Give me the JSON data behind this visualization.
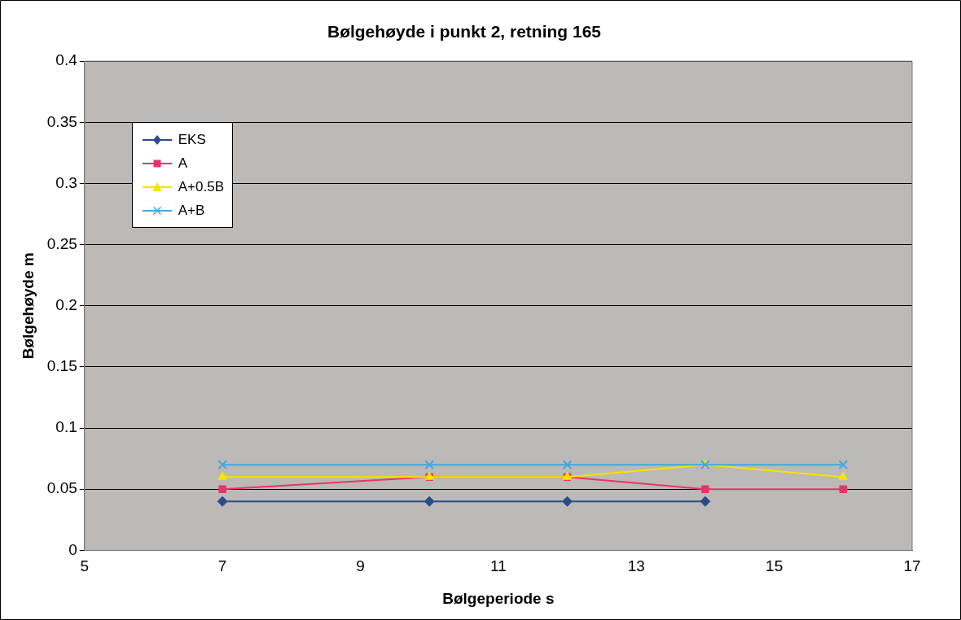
{
  "chart_data": {
    "type": "line",
    "title": "Bølgehøyde i punkt 2, retning 165",
    "xlabel": "Bølgeperiode s",
    "ylabel": "Bølgehøyde m",
    "xlim": [
      5,
      17
    ],
    "xticks": [
      5,
      7,
      9,
      11,
      13,
      15,
      17
    ],
    "ylim": [
      0,
      0.4
    ],
    "yticks": [
      0,
      0.05,
      0.1,
      0.15,
      0.2,
      0.25,
      0.3,
      0.35,
      0.4
    ],
    "grid": "y",
    "legend": "top left",
    "series": [
      {
        "name": "EKS",
        "color": "#2b4a8e",
        "marker": "diamond",
        "x": [
          7,
          10,
          12,
          14
        ],
        "values": [
          0.04,
          0.04,
          0.04,
          0.04
        ]
      },
      {
        "name": "A",
        "color": "#e8336b",
        "marker": "square",
        "x": [
          7,
          10,
          12,
          14,
          16
        ],
        "values": [
          0.05,
          0.06,
          0.06,
          0.05,
          0.05
        ]
      },
      {
        "name": "A+0.5B",
        "color": "#f5e400",
        "marker": "triangle",
        "x": [
          7,
          10,
          12,
          14,
          16
        ],
        "values": [
          0.06,
          0.06,
          0.06,
          0.07,
          0.06
        ]
      },
      {
        "name": "A+B",
        "color": "#3fa9e0",
        "marker": "cross",
        "x": [
          7,
          10,
          12,
          14,
          16
        ],
        "values": [
          0.07,
          0.07,
          0.07,
          0.07,
          0.07
        ]
      }
    ]
  }
}
